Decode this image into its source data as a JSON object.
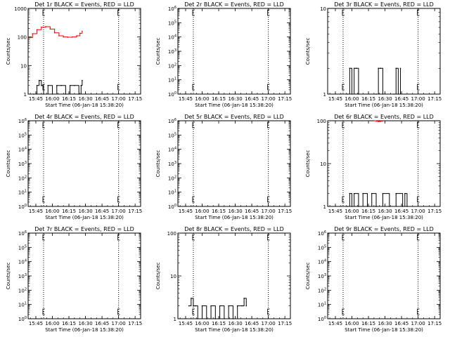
{
  "chart_data": [
    {
      "type": "line",
      "title": "Det 1r BLACK = Events, RED = LLD",
      "xlabel": "Start Time (06-Jan-18 15:38:20)",
      "ylabel": "Counts/sec",
      "yscale": "log",
      "ylim": [
        1,
        1000
      ],
      "ytick_labels": [
        "1",
        "10",
        "100",
        "1000"
      ],
      "xlim": [
        "15:38",
        "17:20"
      ],
      "xtick_labels": [
        "15:45",
        "16:00",
        "16:15",
        "16:30",
        "16:45",
        "17:00",
        "17:15"
      ],
      "grid": false,
      "markers": [
        "15:52",
        "17:00"
      ],
      "series": [
        {
          "name": "LLD",
          "color": "#ff0000",
          "x": [
            "15:38",
            "15:42",
            "15:46",
            "15:50",
            "15:54",
            "15:58",
            "16:02",
            "16:06",
            "16:10",
            "16:14",
            "16:18",
            "16:22",
            "16:25",
            "16:27"
          ],
          "values": [
            95,
            130,
            180,
            220,
            230,
            190,
            140,
            110,
            100,
            98,
            100,
            110,
            135,
            160
          ]
        },
        {
          "name": "Events",
          "color": "#000000",
          "x": [
            "15:43",
            "15:46",
            "15:48",
            "15:50",
            "15:52",
            "15:56",
            "16:00",
            "16:04",
            "16:08",
            "16:12",
            "16:16",
            "16:20",
            "16:24",
            "16:26",
            "16:27"
          ],
          "values": [
            1,
            2,
            3,
            2,
            1,
            2,
            1,
            2,
            2,
            1,
            2,
            2,
            1,
            2,
            3
          ]
        }
      ]
    },
    {
      "type": "line",
      "title": "Det 2r BLACK = Events, RED = LLD",
      "xlabel": "Start Time (06-Jan-18 15:38:20)",
      "ylabel": "Counts/sec",
      "yscale": "log",
      "ylim": [
        1,
        1000000
      ],
      "ytick_labels": [
        "10^0",
        "10^1",
        "10^2",
        "10^3",
        "10^4",
        "10^5",
        "10^6"
      ],
      "xlim": [
        "15:38",
        "17:20"
      ],
      "xtick_labels": [
        "15:45",
        "16:00",
        "16:15",
        "16:30",
        "16:45",
        "17:00",
        "17:15"
      ],
      "grid": false,
      "markers": [
        "15:52",
        "17:00"
      ],
      "series": []
    },
    {
      "type": "line",
      "title": "Det 3r BLACK = Events, RED = LLD",
      "xlabel": "Start Time (06-Jan-18 15:38:20)",
      "ylabel": "Counts/sec",
      "yscale": "log",
      "ylim": [
        1,
        10
      ],
      "ytick_labels": [
        "1",
        "10"
      ],
      "xlim": [
        "15:38",
        "17:20"
      ],
      "xtick_labels": [
        "15:45",
        "16:00",
        "16:15",
        "16:30",
        "16:45",
        "17:00",
        "17:15"
      ],
      "grid": false,
      "markers": [
        "15:52",
        "17:00"
      ],
      "series": [
        {
          "name": "Events",
          "color": "#000000",
          "x": [
            "15:56",
            "15:58",
            "16:00",
            "16:02",
            "16:04",
            "16:06",
            "16:22",
            "16:24",
            "16:26",
            "16:28",
            "16:38",
            "16:40",
            "16:42",
            "16:44"
          ],
          "values": [
            1,
            2,
            1,
            2,
            2,
            1,
            1,
            2,
            2,
            1,
            1,
            2,
            1,
            2
          ]
        }
      ]
    },
    {
      "type": "line",
      "title": "Det 4r BLACK = Events, RED = LLD",
      "xlabel": "Start Time (06-Jan-18 15:38:20)",
      "ylabel": "Counts/sec",
      "yscale": "log",
      "ylim": [
        1,
        1000000
      ],
      "ytick_labels": [
        "10^0",
        "10^1",
        "10^2",
        "10^3",
        "10^4",
        "10^5",
        "10^6"
      ],
      "xlim": [
        "15:38",
        "17:20"
      ],
      "xtick_labels": [
        "15:45",
        "16:00",
        "16:15",
        "16:30",
        "16:45",
        "17:00",
        "17:15"
      ],
      "grid": false,
      "markers": [
        "15:52",
        "17:00"
      ],
      "series": []
    },
    {
      "type": "line",
      "title": "Det 5r BLACK = Events, RED = LLD",
      "xlabel": "Start Time (06-Jan-18 15:38:20)",
      "ylabel": "Counts/sec",
      "yscale": "log",
      "ylim": [
        1,
        1000000
      ],
      "ytick_labels": [
        "10^0",
        "10^1",
        "10^2",
        "10^3",
        "10^4",
        "10^5",
        "10^6"
      ],
      "xlim": [
        "15:38",
        "17:20"
      ],
      "xtick_labels": [
        "15:45",
        "16:00",
        "16:15",
        "16:30",
        "16:45",
        "17:00",
        "17:15"
      ],
      "grid": false,
      "markers": [
        "15:52",
        "17:00"
      ],
      "series": []
    },
    {
      "type": "line",
      "title": "Det 6r BLACK = Events, RED = LLD",
      "xlabel": "Start Time (06-Jan-18 15:38:20)",
      "ylabel": "Counts/sec",
      "yscale": "log",
      "ylim": [
        1,
        100
      ],
      "ytick_labels": [
        "1",
        "10",
        "100"
      ],
      "xlim": [
        "15:38",
        "17:20"
      ],
      "xtick_labels": [
        "15:45",
        "16:00",
        "16:15",
        "16:30",
        "16:45",
        "17:00",
        "17:15"
      ],
      "grid": false,
      "markers": [
        "15:52",
        "17:00"
      ],
      "series": [
        {
          "name": "LLD",
          "color": "#ff0000",
          "x": [
            "16:20",
            "16:22",
            "16:24",
            "16:26",
            "16:28"
          ],
          "values": [
            100,
            98,
            96,
            98,
            100
          ]
        },
        {
          "name": "Events",
          "color": "#000000",
          "x": [
            "15:56",
            "15:58",
            "16:00",
            "16:02",
            "16:06",
            "16:10",
            "16:14",
            "16:18",
            "16:22",
            "16:28",
            "16:34",
            "16:40",
            "16:46",
            "16:48",
            "16:50"
          ],
          "values": [
            1,
            2,
            1,
            2,
            1,
            2,
            1,
            2,
            1,
            2,
            1,
            2,
            1,
            2,
            1
          ]
        }
      ]
    },
    {
      "type": "line",
      "title": "Det 7r BLACK = Events, RED = LLD",
      "xlabel": "Start Time (06-Jan-18 15:38:20)",
      "ylabel": "Counts/sec",
      "yscale": "log",
      "ylim": [
        1,
        1000000
      ],
      "ytick_labels": [
        "10^0",
        "10^1",
        "10^2",
        "10^3",
        "10^4",
        "10^5",
        "10^6"
      ],
      "xlim": [
        "15:38",
        "17:20"
      ],
      "xtick_labels": [
        "15:45",
        "16:00",
        "16:15",
        "16:30",
        "16:45",
        "17:00",
        "17:15"
      ],
      "grid": false,
      "markers": [
        "15:52",
        "17:00"
      ],
      "series": []
    },
    {
      "type": "line",
      "title": "Det 8r BLACK = Events, RED = LLD",
      "xlabel": "Start Time (06-Jan-18 15:38:20)",
      "ylabel": "Counts/sec",
      "yscale": "log",
      "ylim": [
        1,
        100
      ],
      "ytick_labels": [
        "1",
        "10",
        "100"
      ],
      "xlim": [
        "15:38",
        "17:20"
      ],
      "xtick_labels": [
        "15:45",
        "16:00",
        "16:15",
        "16:30",
        "16:45",
        "17:00",
        "17:15"
      ],
      "grid": false,
      "markers": [
        "15:52",
        "17:00"
      ],
      "series": [
        {
          "name": "Events",
          "color": "#000000",
          "x": [
            "15:48",
            "15:50",
            "15:52",
            "15:54",
            "15:56",
            "16:00",
            "16:04",
            "16:08",
            "16:12",
            "16:16",
            "16:20",
            "16:24",
            "16:28",
            "16:32",
            "16:36",
            "16:38",
            "16:40"
          ],
          "values": [
            2,
            3,
            2,
            2,
            1,
            2,
            1,
            2,
            1,
            2,
            1,
            2,
            1,
            2,
            2,
            3,
            2
          ]
        }
      ]
    },
    {
      "type": "line",
      "title": "Det 9r BLACK = Events, RED = LLD",
      "xlabel": "Start Time (06-Jan-18 15:38:20)",
      "ylabel": "Counts/sec",
      "yscale": "log",
      "ylim": [
        1,
        1000000
      ],
      "ytick_labels": [
        "10^0",
        "10^1",
        "10^2",
        "10^3",
        "10^4",
        "10^5",
        "10^6"
      ],
      "xlim": [
        "15:38",
        "17:20"
      ],
      "xtick_labels": [
        "15:45",
        "16:00",
        "16:15",
        "16:30",
        "16:45",
        "17:00",
        "17:15"
      ],
      "grid": false,
      "markers": [
        "15:52",
        "17:00"
      ],
      "series": []
    }
  ]
}
